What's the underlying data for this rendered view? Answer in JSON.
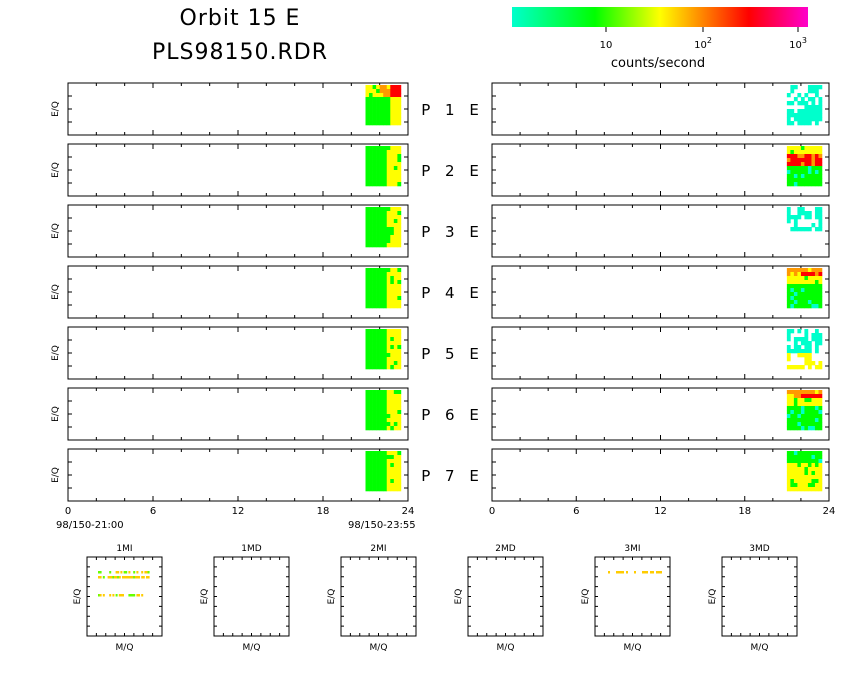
{
  "header": {
    "title_line1": "Orbit 15 E",
    "title_line2": "PLS98150.RDR"
  },
  "colorbar": {
    "label": "counts/second",
    "ticks": [
      {
        "base": "10",
        "exp": ""
      },
      {
        "base": "10",
        "exp": "2"
      },
      {
        "base": "10",
        "exp": "3"
      }
    ],
    "colors": [
      "#00ffcc",
      "#00ff00",
      "#ffff00",
      "#ff9900",
      "#ff0000",
      "#ff00cc"
    ]
  },
  "chart_data": [
    {
      "type": "heatmap",
      "name": "panels",
      "row_labels": [
        "P 1 E",
        "P 2 E",
        "P 3 E",
        "P 4 E",
        "P 5 E",
        "P 6 E",
        "P 7 E"
      ],
      "ylabel": "E/Q",
      "x_ticks": [
        "0",
        "6",
        "12",
        "18",
        "24"
      ],
      "xlim": [
        0,
        24
      ],
      "left_time_start": "98/150-21:00",
      "left_time_end": "98/150-23:55",
      "data_x_range": [
        21,
        23.5
      ],
      "levels": [
        "cyan",
        "green",
        "yellow",
        "orange",
        "red",
        "magenta"
      ]
    },
    {
      "type": "scatter",
      "name": "mass_panels",
      "panels": [
        "1MI",
        "1MD",
        "2MI",
        "2MD",
        "3MI",
        "3MD"
      ],
      "xlabel": "M/Q",
      "ylabel": "E/Q"
    }
  ]
}
